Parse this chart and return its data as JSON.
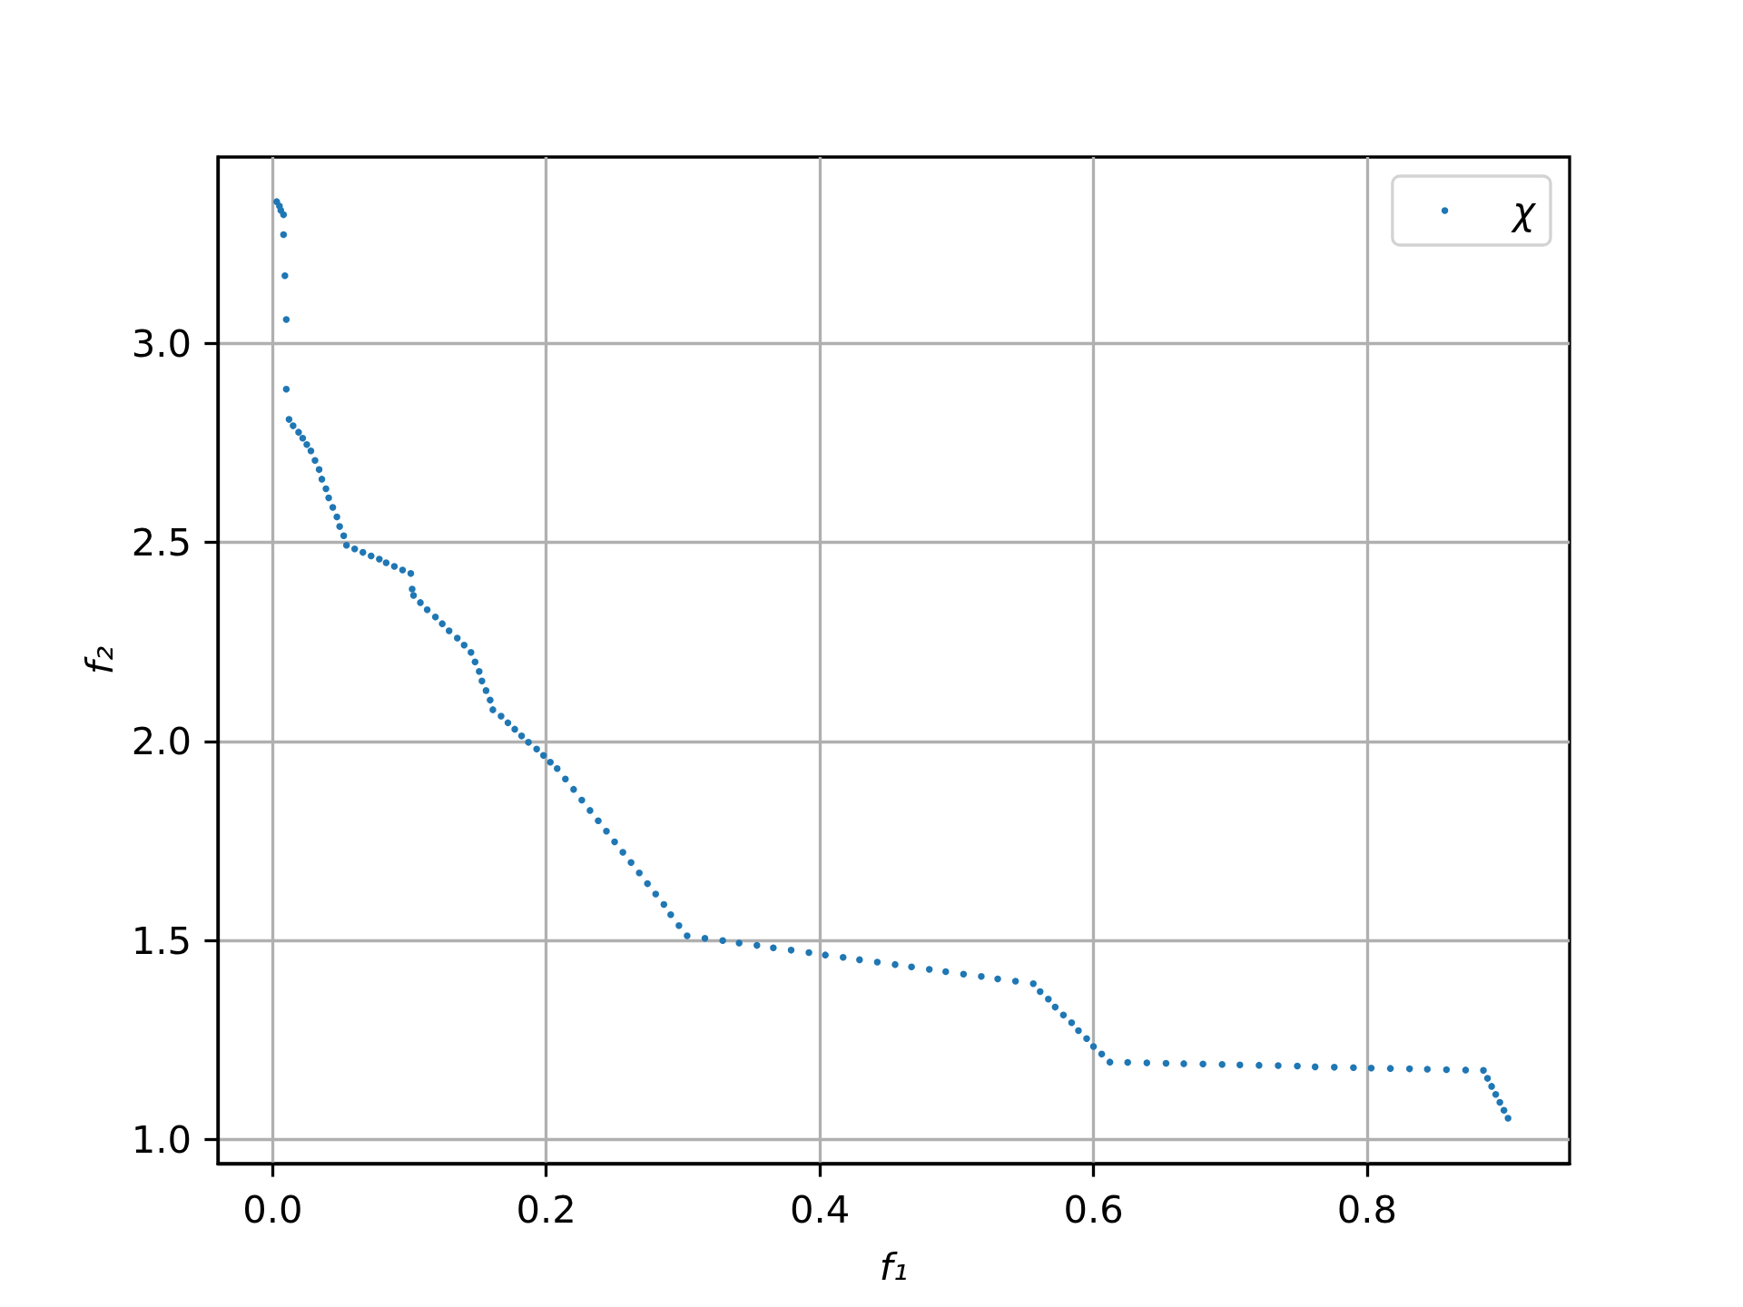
{
  "chart_data": {
    "type": "scatter",
    "xlabel": "f₁",
    "ylabel": "f₂",
    "xlim": [
      -0.04,
      0.948
    ],
    "ylim": [
      0.94,
      3.468
    ],
    "xticks": [
      {
        "value": 0,
        "label": "0.0"
      },
      0.2,
      0.4,
      0.6,
      0.8
    ],
    "yticks": [
      {
        "value": 1,
        "label": "1.0"
      },
      1.5,
      {
        "value": 2,
        "label": "2.0"
      },
      2.5,
      {
        "value": 3,
        "label": "3.0"
      }
    ],
    "grid": true,
    "legend": "top right",
    "marker": "circle",
    "x": [
      0.003,
      0.005,
      0.006,
      0.008,
      0.008,
      0.009,
      0.01,
      0.01,
      0.012,
      0.015,
      0.019,
      0.022,
      0.025,
      0.028,
      0.031,
      0.034,
      0.036,
      0.039,
      0.041,
      0.044,
      0.047,
      0.049,
      0.052,
      0.054,
      0.06,
      0.066,
      0.072,
      0.078,
      0.083,
      0.089,
      0.095,
      0.101,
      0.102,
      0.103,
      0.108,
      0.113,
      0.119,
      0.124,
      0.129,
      0.135,
      0.14,
      0.145,
      0.148,
      0.151,
      0.153,
      0.156,
      0.159,
      0.161,
      0.167,
      0.172,
      0.177,
      0.182,
      0.187,
      0.193,
      0.198,
      0.203,
      0.208,
      0.214,
      0.22,
      0.226,
      0.232,
      0.238,
      0.244,
      0.25,
      0.256,
      0.262,
      0.268,
      0.274,
      0.28,
      0.286,
      0.291,
      0.297,
      0.303,
      0.316,
      0.329,
      0.341,
      0.354,
      0.366,
      0.379,
      0.392,
      0.404,
      0.417,
      0.429,
      0.442,
      0.455,
      0.467,
      0.48,
      0.492,
      0.505,
      0.518,
      0.53,
      0.543,
      0.556,
      0.561,
      0.567,
      0.572,
      0.578,
      0.584,
      0.589,
      0.595,
      0.6,
      0.606,
      0.612,
      0.625,
      0.639,
      0.653,
      0.666,
      0.68,
      0.694,
      0.707,
      0.721,
      0.735,
      0.749,
      0.762,
      0.776,
      0.79,
      0.803,
      0.817,
      0.831,
      0.844,
      0.858,
      0.872,
      0.885,
      0.888,
      0.891,
      0.894,
      0.897,
      0.9,
      0.903
    ],
    "series": [
      {
        "name": "χ",
        "color": "#1f77b4",
        "values": [
          3.356,
          3.345,
          3.334,
          3.323,
          3.273,
          3.17,
          3.06,
          2.885,
          2.809,
          2.793,
          2.777,
          2.762,
          2.746,
          2.73,
          2.706,
          2.683,
          2.659,
          2.635,
          2.612,
          2.588,
          2.564,
          2.54,
          2.517,
          2.493,
          2.484,
          2.475,
          2.466,
          2.458,
          2.449,
          2.44,
          2.431,
          2.422,
          2.383,
          2.367,
          2.349,
          2.331,
          2.313,
          2.296,
          2.278,
          2.26,
          2.242,
          2.224,
          2.2,
          2.176,
          2.152,
          2.128,
          2.104,
          2.08,
          2.064,
          2.047,
          2.031,
          2.014,
          1.998,
          1.981,
          1.965,
          1.948,
          1.932,
          1.906,
          1.88,
          1.853,
          1.827,
          1.801,
          1.775,
          1.748,
          1.722,
          1.696,
          1.67,
          1.643,
          1.617,
          1.591,
          1.565,
          1.538,
          1.512,
          1.506,
          1.5,
          1.494,
          1.488,
          1.482,
          1.476,
          1.47,
          1.464,
          1.458,
          1.452,
          1.446,
          1.44,
          1.434,
          1.428,
          1.422,
          1.416,
          1.41,
          1.404,
          1.398,
          1.392,
          1.372,
          1.353,
          1.333,
          1.313,
          1.294,
          1.274,
          1.254,
          1.234,
          1.215,
          1.195,
          1.194,
          1.193,
          1.192,
          1.191,
          1.19,
          1.189,
          1.188,
          1.187,
          1.186,
          1.185,
          1.183,
          1.182,
          1.181,
          1.18,
          1.179,
          1.178,
          1.177,
          1.176,
          1.175,
          1.174,
          1.154,
          1.134,
          1.114,
          1.094,
          1.074,
          1.054
        ]
      }
    ]
  }
}
